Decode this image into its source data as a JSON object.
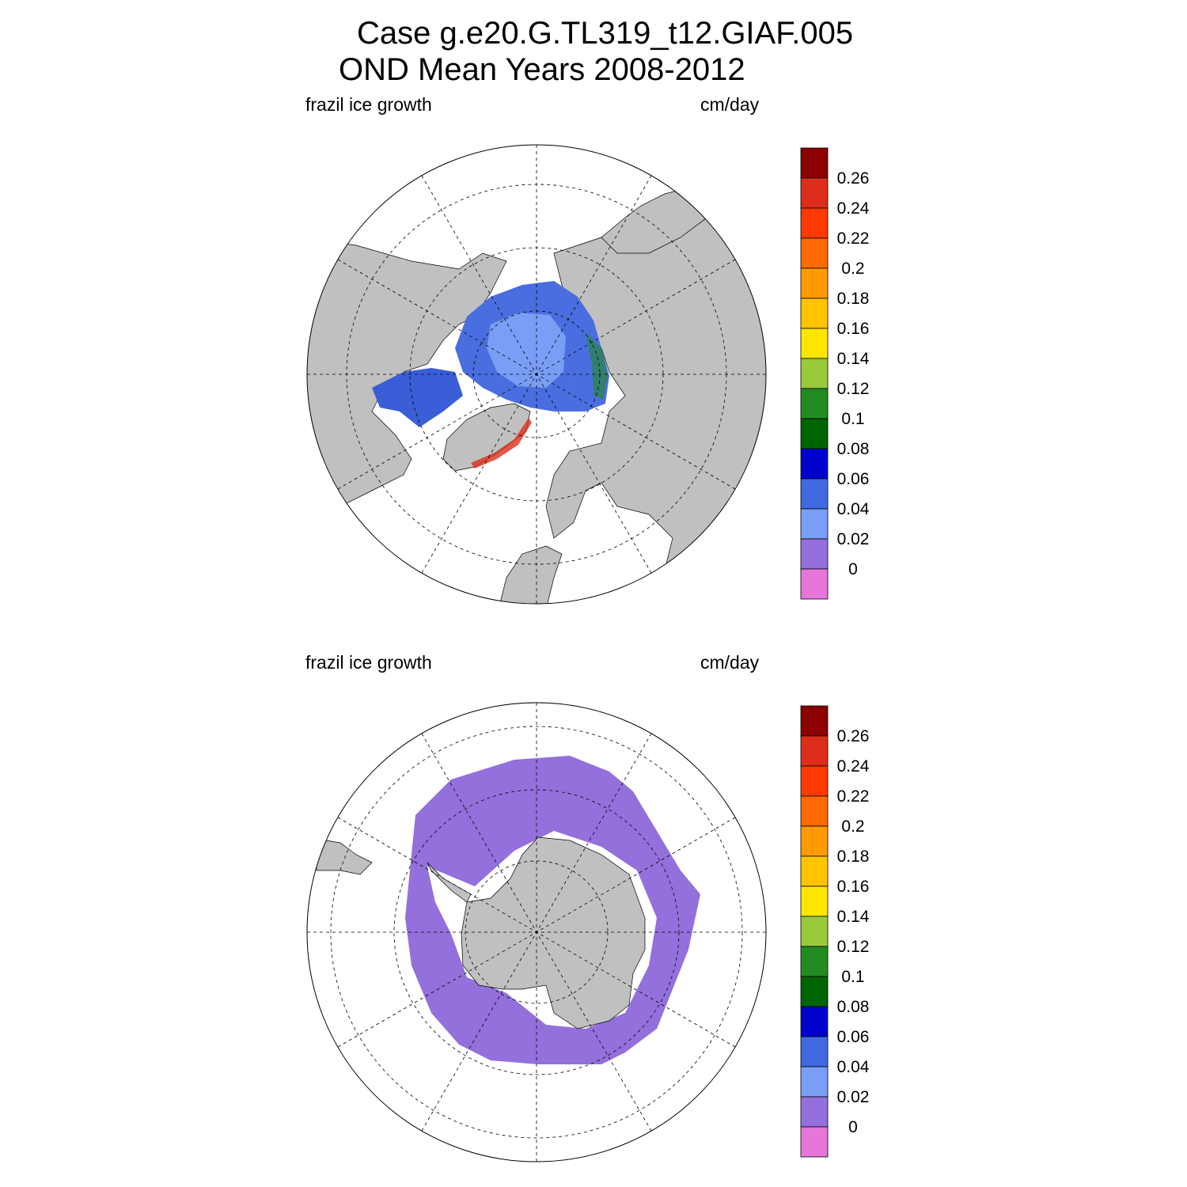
{
  "title": {
    "line1": "Case g.e20.G.TL319_t12.GIAF.005",
    "line2": "OND Mean   Years 2008-2012"
  },
  "panels": [
    {
      "hemisphere": "north",
      "variable": "frazil ice growth",
      "units": "cm/day"
    },
    {
      "hemisphere": "south",
      "variable": "frazil ice growth",
      "units": "cm/day"
    }
  ],
  "colorbar": {
    "tick_labels": [
      "0.26",
      "0.24",
      "0.22",
      "0.2",
      "0.18",
      "0.16",
      "0.14",
      "0.12",
      "0.1",
      "0.08",
      "0.06",
      "0.04",
      "0.02",
      "0"
    ],
    "colors_top_to_bottom": [
      "#8b0000",
      "#dc2e1a",
      "#ff3a00",
      "#ff6a00",
      "#ff9a00",
      "#ffc300",
      "#ffe600",
      "#9aca3c",
      "#228b22",
      "#006400",
      "#0000cd",
      "#4169e1",
      "#7a9ef5",
      "#9370db",
      "#e676da"
    ]
  },
  "colors": {
    "land": "#c0c0c0",
    "open_ocean": "#ffffff"
  }
}
